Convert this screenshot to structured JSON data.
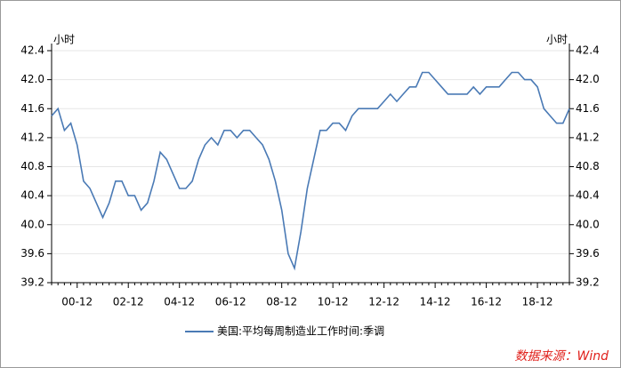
{
  "chart_data": {
    "type": "line",
    "y_label": "小时",
    "y2_label": "小时",
    "source": "数据来源：Wind",
    "categories": [
      null,
      null,
      null,
      null,
      "00-12",
      null,
      null,
      null,
      null,
      null,
      null,
      null,
      "02-12",
      null,
      null,
      null,
      null,
      null,
      null,
      null,
      "04-12",
      null,
      null,
      null,
      null,
      null,
      null,
      null,
      "06-12",
      null,
      null,
      null,
      null,
      null,
      null,
      null,
      "08-12",
      null,
      null,
      null,
      null,
      null,
      null,
      null,
      "10-12",
      null,
      null,
      null,
      null,
      null,
      null,
      null,
      "12-12",
      null,
      null,
      null,
      null,
      null,
      null,
      null,
      "14-12",
      null,
      null,
      null,
      null,
      null,
      null,
      null,
      "16-12",
      null,
      null,
      null,
      null,
      null,
      null,
      null,
      "18-12",
      null,
      null,
      null,
      null,
      null
    ],
    "series": [
      {
        "name": "美国:平均每周制造业工作时间:季调",
        "color": "#4a7ab5",
        "values": [
          41.5,
          41.6,
          41.3,
          41.4,
          41.1,
          40.6,
          40.5,
          40.3,
          40.1,
          40.3,
          40.6,
          40.6,
          40.4,
          40.4,
          40.2,
          40.3,
          40.6,
          41.0,
          40.9,
          40.7,
          40.5,
          40.5,
          40.6,
          40.9,
          41.1,
          41.2,
          41.1,
          41.3,
          41.3,
          41.2,
          41.3,
          41.3,
          41.2,
          41.1,
          40.9,
          40.6,
          40.2,
          39.6,
          39.4,
          39.9,
          40.5,
          40.9,
          41.3,
          41.3,
          41.4,
          41.4,
          41.3,
          41.5,
          41.6,
          41.6,
          41.6,
          41.6,
          41.7,
          41.8,
          41.7,
          41.8,
          41.9,
          41.9,
          42.1,
          42.1,
          42.0,
          41.9,
          41.8,
          41.8,
          41.8,
          41.8,
          41.9,
          41.8,
          41.9,
          41.9,
          41.9,
          42.0,
          42.1,
          42.1,
          42.0,
          42.0,
          41.9,
          41.6,
          41.5,
          41.4,
          41.4,
          41.6
        ]
      }
    ],
    "ylim": [
      39.2,
      42.4
    ],
    "yticks": [
      39.2,
      39.6,
      {
        "value": 40,
        "label": "40.0"
      },
      40.4,
      40.8,
      41.2,
      41.6,
      {
        "value": 42,
        "label": "42.0"
      },
      42.4
    ],
    "y2lim": [
      39.2,
      42.4
    ],
    "y2ticks": [
      39.2,
      39.6,
      {
        "value": 40,
        "label": "40.0"
      },
      40.4,
      40.8,
      41.2,
      41.6,
      {
        "value": 42,
        "label": "42.0"
      },
      42.4
    ],
    "grid": true
  }
}
